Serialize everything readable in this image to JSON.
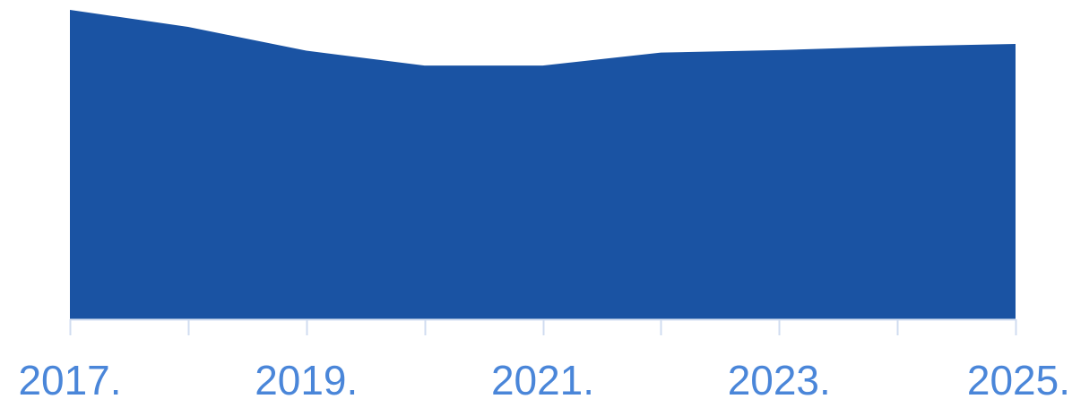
{
  "chart_data": {
    "type": "area",
    "x": [
      2017,
      2018,
      2019,
      2020,
      2021,
      2022,
      2023,
      2024,
      2025
    ],
    "series": [
      {
        "values": [
          100,
          94.5,
          86.8,
          82.0,
          82.0,
          86.2,
          87.0,
          88.2,
          89.0
        ]
      }
    ],
    "tick_labels": [
      "2017.",
      "2019.",
      "2021.",
      "2023.",
      "2025."
    ],
    "tick_label_values": [
      2017,
      2019,
      2021,
      2023,
      2025
    ],
    "minor_ticks": [
      2017,
      2018,
      2019,
      2020,
      2021,
      2022,
      2023,
      2024,
      2025
    ],
    "xlim": [
      2017,
      2025
    ],
    "ylim": [
      0,
      100
    ],
    "grid": false,
    "colors": {
      "area": "#1a53a3",
      "axis": "#d0dcf0",
      "tick_label": "#4a86d9"
    }
  }
}
